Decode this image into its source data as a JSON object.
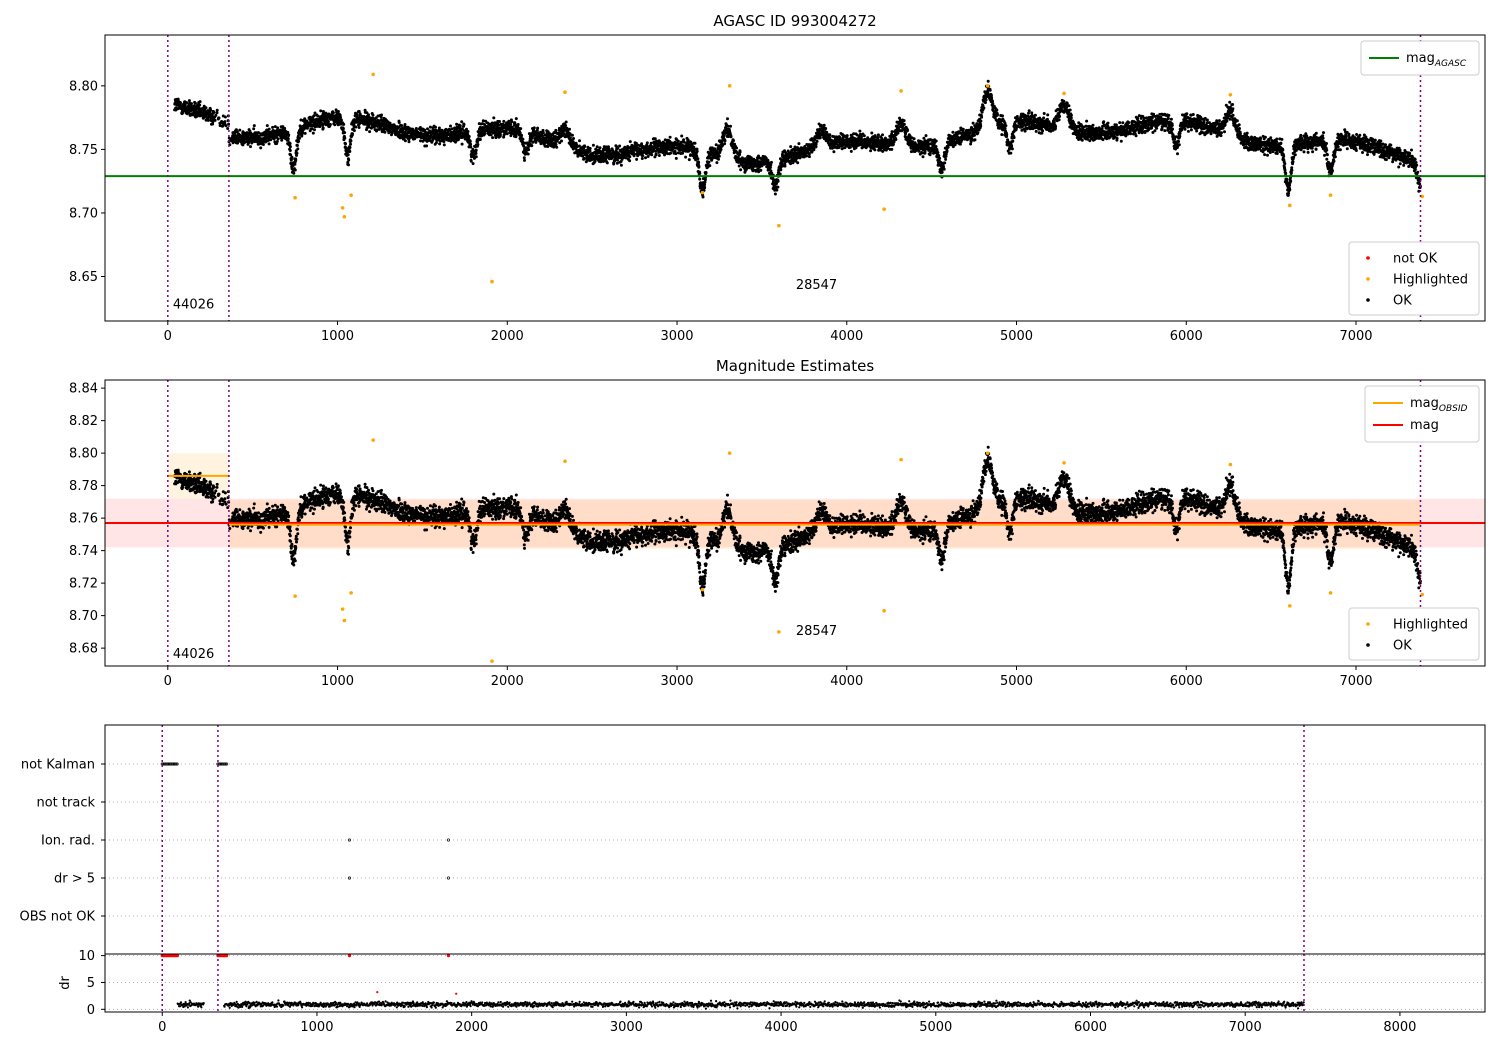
{
  "chart_data": [
    {
      "type": "scatter",
      "title": "AGASC ID 993004272",
      "xlabel": "",
      "ylabel": "",
      "xlim": [
        -370,
        7760
      ],
      "ylim": [
        8.615,
        8.84
      ],
      "xticks": [
        "0",
        "1000",
        "2000",
        "3000",
        "4000",
        "5000",
        "6000",
        "7000",
        "8000"
      ],
      "yticks": [
        "8.65",
        "8.70",
        "8.75",
        "8.80"
      ],
      "grid": false,
      "hlines": [
        {
          "name": "mag_AGASC",
          "y": 8.729,
          "color": "#008000",
          "x_range": [
            -370,
            7760
          ]
        }
      ],
      "vlines": [
        0,
        360,
        7380
      ],
      "annotations": [
        {
          "text": "44026",
          "x": 30,
          "y": 8.625
        },
        {
          "text": "28547",
          "x": 3700,
          "y": 8.64
        }
      ],
      "legend_top": {
        "position": "top-right",
        "entries": [
          {
            "name": "mag",
            "sub": "AGASC",
            "color": "#008000"
          }
        ]
      },
      "legend_bottom": {
        "position": "bottom-right",
        "entries": [
          {
            "name": "not OK",
            "color": "#ff0000"
          },
          {
            "name": "Highlighted",
            "color": "#ffa500"
          },
          {
            "name": "OK",
            "color": "#000000"
          }
        ]
      },
      "series_note": "dense time series of about 7000 OK points (black)",
      "highlighted_points": [
        [
          1030,
          8.704
        ],
        [
          1040,
          8.697
        ],
        [
          1210,
          8.809
        ],
        [
          1910,
          8.646
        ],
        [
          3600,
          8.69
        ],
        [
          4220,
          8.703
        ],
        [
          4830,
          8.8
        ],
        [
          3310,
          8.8
        ],
        [
          2340,
          8.795
        ],
        [
          4320,
          8.796
        ],
        [
          5280,
          8.794
        ],
        [
          6260,
          8.793
        ],
        [
          750,
          8.712
        ],
        [
          1080,
          8.714
        ],
        [
          3150,
          8.716
        ],
        [
          6610,
          8.706
        ],
        [
          6850,
          8.714
        ],
        [
          7390,
          8.713
        ]
      ]
    },
    {
      "type": "scatter",
      "title": "Magnitude Estimates",
      "xlabel": "",
      "ylabel": "",
      "xlim": [
        -370,
        7760
      ],
      "ylim": [
        8.669,
        8.845
      ],
      "xticks": [
        "0",
        "1000",
        "2000",
        "3000",
        "4000",
        "5000",
        "6000",
        "7000",
        "8000"
      ],
      "yticks": [
        "8.68",
        "8.70",
        "8.72",
        "8.74",
        "8.76",
        "8.78",
        "8.80",
        "8.82",
        "8.84"
      ],
      "grid": false,
      "hlines": [
        {
          "name": "mag",
          "y": 8.757,
          "color": "#ff0000",
          "x_range": [
            -370,
            7760
          ],
          "band": [
            8.742,
            8.772
          ]
        },
        {
          "name": "mag_OBSID",
          "y": 8.786,
          "color": "#ffa500",
          "x_range": [
            0,
            360
          ],
          "band": [
            8.772,
            8.8
          ]
        },
        {
          "name": "mag_OBSID",
          "y": 8.756,
          "color": "#ffa500",
          "x_range": [
            360,
            7380
          ],
          "band": [
            8.741,
            8.771
          ]
        }
      ],
      "vlines": [
        0,
        360,
        7380
      ],
      "annotations": [
        {
          "text": "44026",
          "x": 30,
          "y": 8.674
        },
        {
          "text": "28547",
          "x": 3700,
          "y": 8.688
        }
      ],
      "legend_top": {
        "position": "top-right",
        "entries": [
          {
            "name": "mag",
            "sub": "OBSID",
            "color": "#ffa500"
          },
          {
            "name": "mag",
            "sub": "",
            "color": "#ff0000"
          }
        ]
      },
      "legend_bottom": {
        "position": "bottom-right",
        "entries": [
          {
            "name": "Highlighted",
            "color": "#ffa500"
          },
          {
            "name": "OK",
            "color": "#000000"
          }
        ]
      },
      "highlighted_points": [
        [
          1030,
          8.704
        ],
        [
          1040,
          8.697
        ],
        [
          1210,
          8.808
        ],
        [
          1910,
          8.672
        ],
        [
          3600,
          8.69
        ],
        [
          4220,
          8.703
        ],
        [
          4830,
          8.8
        ],
        [
          3310,
          8.8
        ],
        [
          2340,
          8.795
        ],
        [
          4320,
          8.796
        ],
        [
          5280,
          8.794
        ],
        [
          6260,
          8.793
        ],
        [
          750,
          8.712
        ],
        [
          1080,
          8.714
        ],
        [
          3150,
          8.716
        ],
        [
          6610,
          8.706
        ],
        [
          6850,
          8.714
        ],
        [
          7390,
          8.713
        ]
      ]
    },
    {
      "type": "scatter",
      "title": "",
      "xlim": [
        -370,
        8550
      ],
      "categories": [
        "not Kalman",
        "not track",
        "Ion. rad.",
        "dr > 5",
        "OBS not OK"
      ],
      "flags": [
        {
          "category": "not Kalman",
          "x_ranges": [
            [
              0,
              100
            ],
            [
              360,
              420
            ]
          ]
        },
        {
          "category": "Ion. rad.",
          "x_points": [
            1210,
            1850
          ]
        },
        {
          "category": "dr > 5",
          "x_points": [
            1210,
            1850
          ]
        }
      ],
      "grid": true
    },
    {
      "type": "scatter",
      "title": "",
      "xlabel": "",
      "ylabel": "dr",
      "xlim": [
        -370,
        8550
      ],
      "ylim": [
        -0.5,
        10.3
      ],
      "xticks": [
        "0",
        "1000",
        "2000",
        "3000",
        "4000",
        "5000",
        "6000",
        "7000",
        "8000"
      ],
      "yticks": [
        "0",
        "5",
        "10"
      ],
      "red_points_at_10": [
        [
          0,
          100
        ],
        [
          360,
          420
        ],
        [
          1210,
          1210
        ],
        [
          1850,
          1850
        ]
      ],
      "outliers": [
        [
          1390,
          3.2
        ],
        [
          1900,
          2.9
        ]
      ],
      "typical_dr": 1.0
    }
  ]
}
